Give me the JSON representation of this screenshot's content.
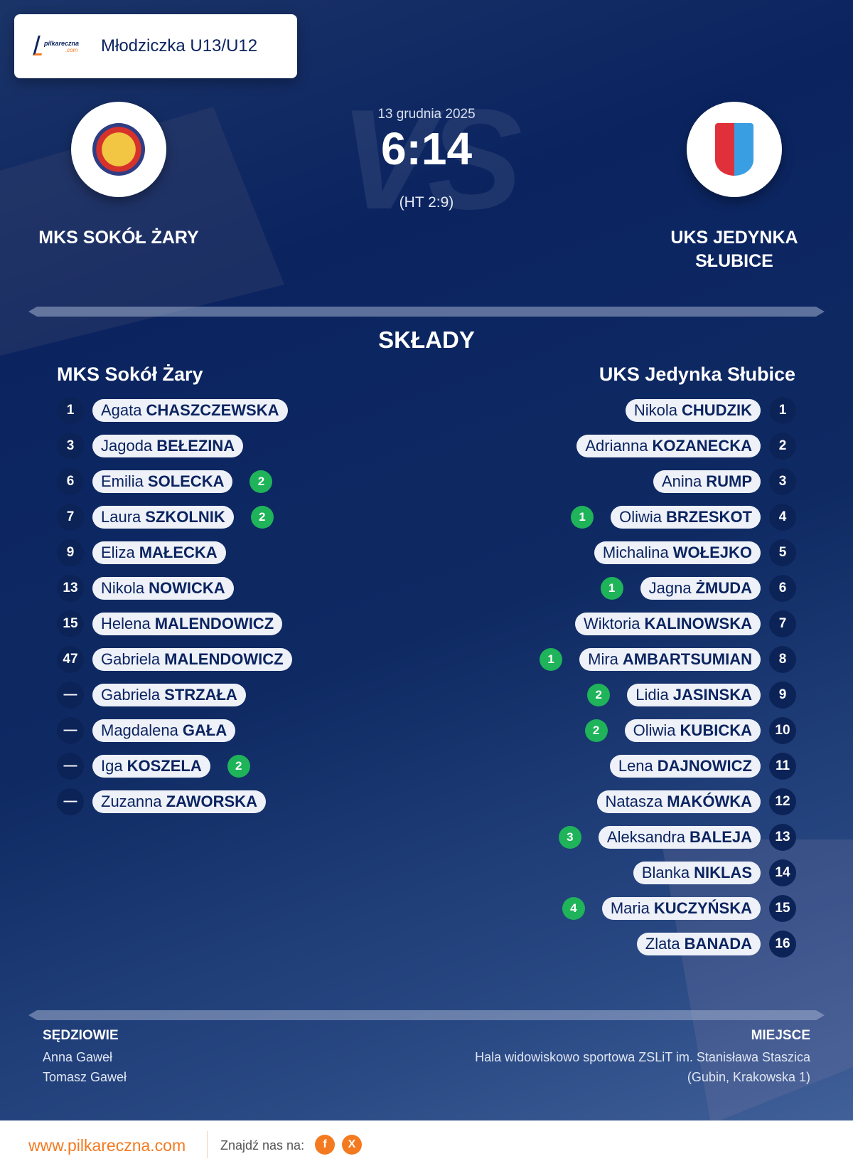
{
  "header": {
    "competition": "Młodziczka U13/U12",
    "logo_text": "pilkareczna",
    "logo_sub": ".com"
  },
  "match": {
    "date": "13 grudnia 2025",
    "score": "6:14",
    "halftime": "(HT 2:9)",
    "vs": "VS",
    "home": "MKS SOKÓŁ ŻARY",
    "away_line1": "UKS JEDYNKA",
    "away_line2": "SŁUBICE"
  },
  "lineups": {
    "title": "SKŁADY",
    "home_team": "MKS Sokół Żary",
    "away_team": "UKS Jedynka Słubice",
    "home": [
      {
        "num": "1",
        "first": "Agata",
        "last": "CHASZCZEWSKA",
        "goals": ""
      },
      {
        "num": "3",
        "first": "Jagoda",
        "last": "BEŁEZINA",
        "goals": ""
      },
      {
        "num": "6",
        "first": "Emilia",
        "last": "SOLECKA",
        "goals": "2"
      },
      {
        "num": "7",
        "first": "Laura",
        "last": "SZKOLNIK",
        "goals": "2"
      },
      {
        "num": "9",
        "first": "Eliza",
        "last": "MAŁECKA",
        "goals": ""
      },
      {
        "num": "13",
        "first": "Nikola",
        "last": "NOWICKA",
        "goals": ""
      },
      {
        "num": "15",
        "first": "Helena",
        "last": "MALENDOWICZ",
        "goals": ""
      },
      {
        "num": "47",
        "first": "Gabriela",
        "last": "MALENDOWICZ",
        "goals": ""
      },
      {
        "num": "—",
        "first": "Gabriela",
        "last": "STRZAŁA",
        "goals": ""
      },
      {
        "num": "—",
        "first": "Magdalena",
        "last": "GAŁA",
        "goals": ""
      },
      {
        "num": "—",
        "first": "Iga",
        "last": "KOSZELA",
        "goals": "2"
      },
      {
        "num": "—",
        "first": "Zuzanna",
        "last": "ZAWORSKA",
        "goals": ""
      }
    ],
    "away": [
      {
        "num": "1",
        "first": "Nikola",
        "last": "CHUDZIK",
        "goals": ""
      },
      {
        "num": "2",
        "first": "Adrianna",
        "last": "KOZANECKA",
        "goals": ""
      },
      {
        "num": "3",
        "first": "Anina",
        "last": "RUMP",
        "goals": ""
      },
      {
        "num": "4",
        "first": "Oliwia",
        "last": "BRZESKOT",
        "goals": "1"
      },
      {
        "num": "5",
        "first": "Michalina",
        "last": "WOŁEJKO",
        "goals": ""
      },
      {
        "num": "6",
        "first": "Jagna",
        "last": "ŻMUDA",
        "goals": "1"
      },
      {
        "num": "7",
        "first": "Wiktoria",
        "last": "KALINOWSKA",
        "goals": ""
      },
      {
        "num": "8",
        "first": "Mira",
        "last": "AMBARTSUMIAN",
        "goals": "1"
      },
      {
        "num": "9",
        "first": "Lidia",
        "last": "JASINSKA",
        "goals": "2"
      },
      {
        "num": "10",
        "first": "Oliwia",
        "last": "KUBICKA",
        "goals": "2"
      },
      {
        "num": "11",
        "first": "Lena",
        "last": "DAJNOWICZ",
        "goals": ""
      },
      {
        "num": "12",
        "first": "Natasza",
        "last": "MAKÓWKA",
        "goals": ""
      },
      {
        "num": "13",
        "first": "Aleksandra",
        "last": "BALEJA",
        "goals": "3"
      },
      {
        "num": "14",
        "first": "Blanka",
        "last": "NIKLAS",
        "goals": ""
      },
      {
        "num": "15",
        "first": "Maria",
        "last": "KUCZYŃSKA",
        "goals": "4"
      },
      {
        "num": "16",
        "first": "Zlata",
        "last": "BANADA",
        "goals": ""
      }
    ]
  },
  "officials": {
    "label": "SĘDZIOWIE",
    "names": [
      "Anna Gaweł",
      "Tomasz Gaweł"
    ]
  },
  "venue": {
    "label": "MIEJSCE",
    "name": "Hala widowiskowo sportowa ZSLiT im. Stanisława Staszica",
    "address": "(Gubin, Krakowska 1)"
  },
  "footer": {
    "website": "www.pilkareczna.com",
    "find_us": "Znajdź nas na:",
    "facebook": "f",
    "x": "X"
  },
  "colors": {
    "accent": "#f47a20",
    "goal": "#1fb35a",
    "navy": "#0b2460"
  }
}
